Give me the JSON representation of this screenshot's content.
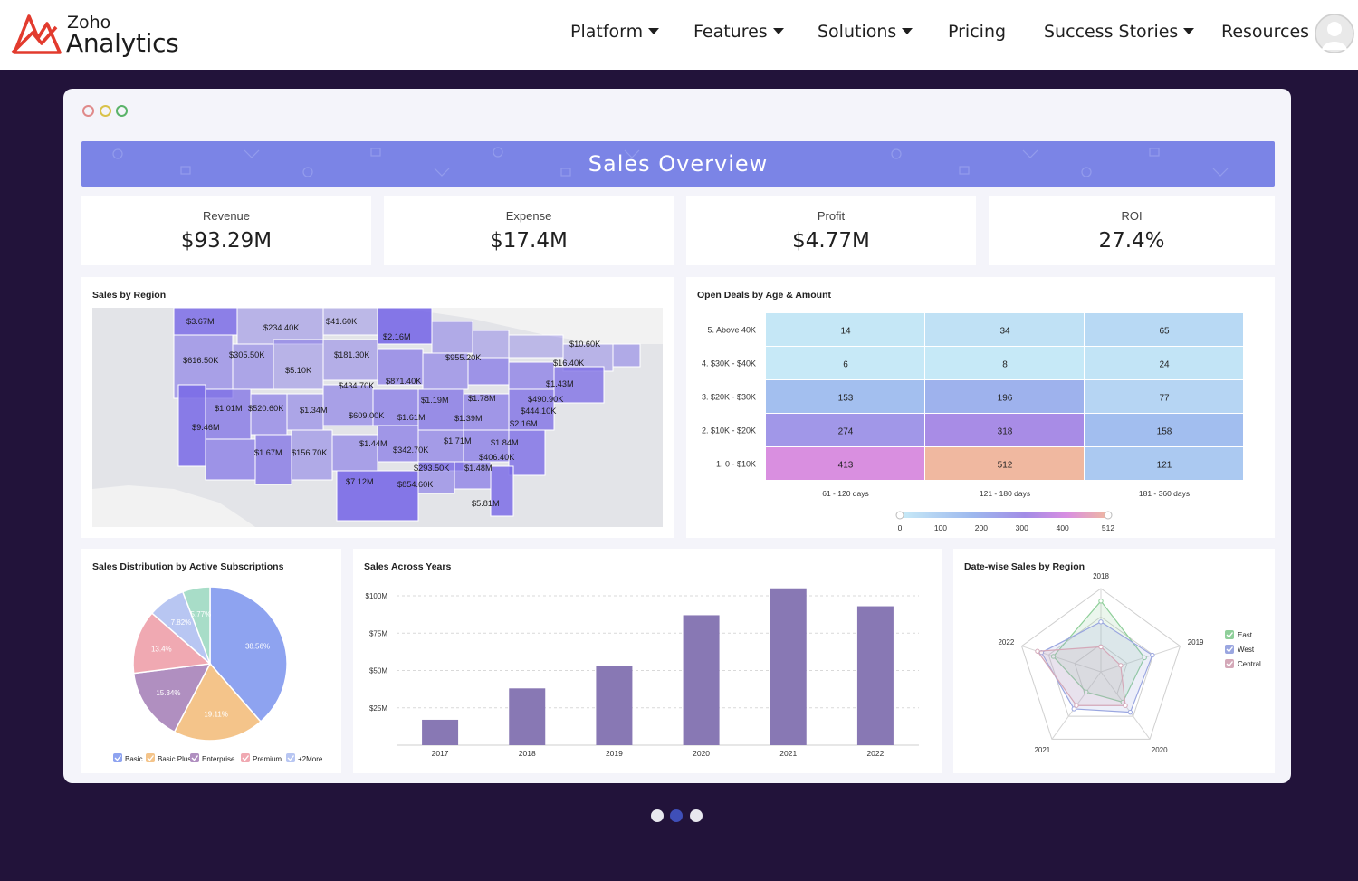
{
  "header": {
    "logo": {
      "line1": "Zoho",
      "line2": "Analytics"
    },
    "nav": [
      {
        "label": "Platform",
        "dropdown": true
      },
      {
        "label": "Features",
        "dropdown": true
      },
      {
        "label": "Solutions",
        "dropdown": true
      },
      {
        "label": "Pricing",
        "dropdown": false
      },
      {
        "label": "Success Stories",
        "dropdown": true
      },
      {
        "label": "Resources",
        "dropdown": false
      }
    ]
  },
  "dashboard": {
    "title": "Sales Overview",
    "window_dots": [
      "#e08a8a",
      "#d9c24a",
      "#5bb36a"
    ],
    "kpis": [
      {
        "label": "Revenue",
        "value": "$93.29M"
      },
      {
        "label": "Expense",
        "value": "$17.4M"
      },
      {
        "label": "Profit",
        "value": "$4.77M"
      },
      {
        "label": "ROI",
        "value": "27.4%"
      }
    ],
    "map": {
      "title": "Sales by Region",
      "labels": [
        "$3.67M",
        "$234.40K",
        "$41.60K",
        "$616.50K",
        "$305.50K",
        "$181.30K",
        "$2.16M",
        "$955.20K",
        "$10.60K",
        "$5.10K",
        "$16.40K",
        "$871.40K",
        "$434.70K",
        "$1.43M",
        "$1.19M",
        "$1.78M",
        "$490.90K",
        "$1.01M",
        "$520.60K",
        "$1.34M",
        "$609.00K",
        "$444.10K",
        "$1.61M",
        "$1.39M",
        "$2.16M",
        "$9.46M",
        "$1.71M",
        "$1.84M",
        "$1.44M",
        "$342.70K",
        "$406.40K",
        "$1.67M",
        "$156.70K",
        "$293.50K",
        "$1.48M",
        "$7.12M",
        "$854.60K",
        "$5.81M"
      ]
    },
    "palette": {
      "map_dark": "#7868e6",
      "bars": "#8878b4"
    }
  },
  "chart_data": [
    {
      "type": "heatmap",
      "title": "Open Deals by Age & Amount",
      "rows": [
        "5. Above 40K",
        "4. $30K - $40K",
        "3. $20K - $30K",
        "2. $10K - $20K",
        "1. 0 - $10K"
      ],
      "columns": [
        "61 - 120 days",
        "121 - 180 days",
        "181 - 360 days"
      ],
      "values": [
        [
          14,
          34,
          65
        ],
        [
          6,
          8,
          24
        ],
        [
          153,
          196,
          77
        ],
        [
          274,
          318,
          158
        ],
        [
          413,
          512,
          121
        ]
      ],
      "legend_ticks": [
        "0",
        "100",
        "200",
        "300",
        "400",
        "512"
      ],
      "range": [
        0,
        512
      ]
    },
    {
      "type": "pie",
      "title": "Sales Distribution by Active Subscriptions",
      "slices": [
        {
          "label": "Basic",
          "value": 38.56,
          "text": "38.56%",
          "color": "#8ea3f0"
        },
        {
          "label": "Basic Plus",
          "value": 19.11,
          "text": "19.11%",
          "color": "#f4c48a"
        },
        {
          "label": "Enterprise",
          "value": 15.34,
          "text": "15.34%",
          "color": "#b08fc0"
        },
        {
          "label": "Premium",
          "value": 13.4,
          "text": "13.4%",
          "color": "#f0a9b2"
        },
        {
          "label": "",
          "value": 7.82,
          "text": "7.82%",
          "color": "#b8c6f2"
        },
        {
          "label": "",
          "value": 5.77,
          "text": "5.77%",
          "color": "#a8ddc8"
        }
      ],
      "legend": [
        "Basic",
        "Basic Plus",
        "Enterprise",
        "Premium",
        "+2More"
      ]
    },
    {
      "type": "bar",
      "title": "Sales Across Years",
      "categories": [
        "2017",
        "2018",
        "2019",
        "2020",
        "2021",
        "2022"
      ],
      "values": [
        17,
        38,
        53,
        87,
        105,
        93
      ],
      "yticks": [
        "$25M",
        "$50M",
        "$75M",
        "$100M"
      ],
      "ylim": [
        0,
        100
      ]
    },
    {
      "type": "radar",
      "title": "Date-wise Sales by Region",
      "axes": [
        "2018",
        "2019",
        "2020",
        "2021",
        "2022"
      ],
      "series": [
        {
          "name": "East",
          "values": [
            0.85,
            0.55,
            0.45,
            0.3,
            0.6
          ],
          "color": "#8fcf9a"
        },
        {
          "name": "West",
          "values": [
            0.6,
            0.65,
            0.6,
            0.55,
            0.75
          ],
          "color": "#9aa6e0"
        },
        {
          "name": "Central",
          "values": [
            0.3,
            0.25,
            0.5,
            0.5,
            0.8
          ],
          "color": "#d4a8b8"
        }
      ]
    }
  ],
  "pager": {
    "count": 3,
    "active": 1
  }
}
